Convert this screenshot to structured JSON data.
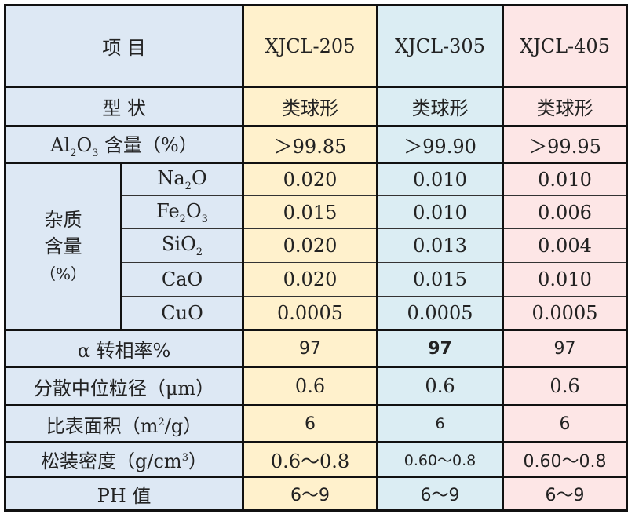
{
  "header": {
    "item_label": "项 目",
    "products": [
      "XJCL-205",
      "XJCL-305",
      "XJCL-405"
    ]
  },
  "colors": {
    "label_bg": "#dde8f4",
    "col1": "#fff1cc",
    "col2": "#dbedf3",
    "col3": "#fde6e6"
  },
  "rows": {
    "shape": {
      "label": "型 状",
      "values": [
        "类球形",
        "类球形",
        "类球形"
      ]
    },
    "al2o3": {
      "label_pre": "Al",
      "sub1": "2",
      "mid": "O",
      "sub2": "3",
      "label_post": " 含量（%）",
      "values": [
        "＞99.85",
        "＞99.90",
        "＞99.95"
      ]
    },
    "impurity_label": [
      "杂质",
      "含量",
      "（%）"
    ],
    "impurities": [
      {
        "name": "Na",
        "sub": "2",
        "tail": "O",
        "values": [
          "0.020",
          "0.010",
          "0.010"
        ]
      },
      {
        "name": "Fe",
        "sub": "2",
        "tail": "O",
        "sub2": "3",
        "values": [
          "0.015",
          "0.010",
          "0.006"
        ]
      },
      {
        "name": "SiO",
        "sub": "2",
        "tail": "",
        "values": [
          "0.020",
          "0.013",
          "0.004"
        ]
      },
      {
        "name": "CaO",
        "sub": "",
        "tail": "",
        "values": [
          "0.020",
          "0.015",
          "0.010"
        ]
      },
      {
        "name": "CuO",
        "sub": "",
        "tail": "",
        "values": [
          "0.0005",
          "0.0005",
          "0.0005"
        ]
      }
    ],
    "alpha": {
      "label": "α 转相率%",
      "values": [
        "97",
        "97",
        "97"
      ]
    },
    "d50": {
      "label": "分散中位粒径（μm）",
      "values": [
        "0.6",
        "0.6",
        "0.6"
      ]
    },
    "ssa": {
      "label_pre": "比表面积（m",
      "sup": "2",
      "label_post": "/g）",
      "values": [
        "6",
        "6",
        "6"
      ]
    },
    "density": {
      "label_pre": "松装密度（g/cm",
      "sup": "3",
      "label_post": "）",
      "values": [
        "0.6～0.8",
        "0.60～0.8",
        "0.60～0.8"
      ]
    },
    "ph": {
      "label": "PH 值",
      "values": [
        "6～9",
        "6～9",
        "6～9"
      ]
    }
  }
}
